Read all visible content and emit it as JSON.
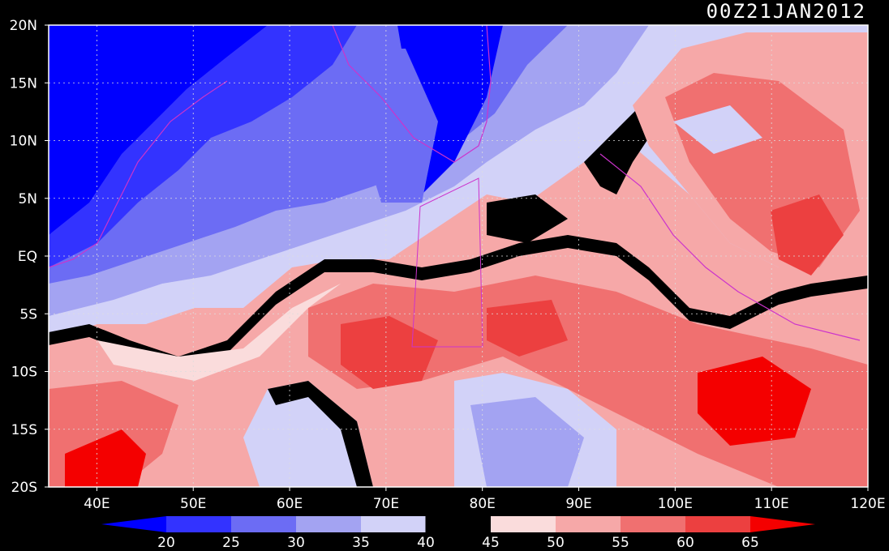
{
  "title": "00Z21JAN2012",
  "map": {
    "lon_min": 35,
    "lon_max": 120,
    "lat_min": -20,
    "lat_max": 20,
    "x_ticks": [
      {
        "value": 40,
        "label": "40E"
      },
      {
        "value": 50,
        "label": "50E"
      },
      {
        "value": 60,
        "label": "60E"
      },
      {
        "value": 70,
        "label": "70E"
      },
      {
        "value": 80,
        "label": "80E"
      },
      {
        "value": 90,
        "label": "90E"
      },
      {
        "value": 100,
        "label": "100E"
      },
      {
        "value": 110,
        "label": "110E"
      },
      {
        "value": 120,
        "label": "120E"
      }
    ],
    "y_ticks": [
      {
        "value": 20,
        "label": "20N"
      },
      {
        "value": 15,
        "label": "15N"
      },
      {
        "value": 10,
        "label": "10N"
      },
      {
        "value": 5,
        "label": "5N"
      },
      {
        "value": 0,
        "label": "EQ"
      },
      {
        "value": -5,
        "label": "5S"
      },
      {
        "value": -10,
        "label": "10S"
      },
      {
        "value": -15,
        "label": "15S"
      },
      {
        "value": -20,
        "label": "20S"
      }
    ],
    "grid": "dotted"
  },
  "colorbar": {
    "labels": [
      "20",
      "25",
      "30",
      "35",
      "40",
      "45",
      "50",
      "55",
      "60",
      "65"
    ],
    "colors": [
      "#0000ff",
      "#3333ff",
      "#6c6cf4",
      "#a3a3f2",
      "#d2d2f8",
      "#000000",
      "#fadcdc",
      "#f6a8a8",
      "#f07070",
      "#ec4040",
      "#f40000"
    ]
  },
  "field_colors": {
    "c20": "#0000ff",
    "c25": "#3333ff",
    "c30": "#6c6cf4",
    "c35": "#a3a3f2",
    "c40": "#d2d2f8",
    "c45": "#000000",
    "c50": "#fadcdc",
    "c55": "#f6a8a8",
    "c60": "#f07070",
    "c65": "#ec4040",
    "c70": "#f40000",
    "contour": "#ffffff",
    "coast": "#cc33cc"
  }
}
